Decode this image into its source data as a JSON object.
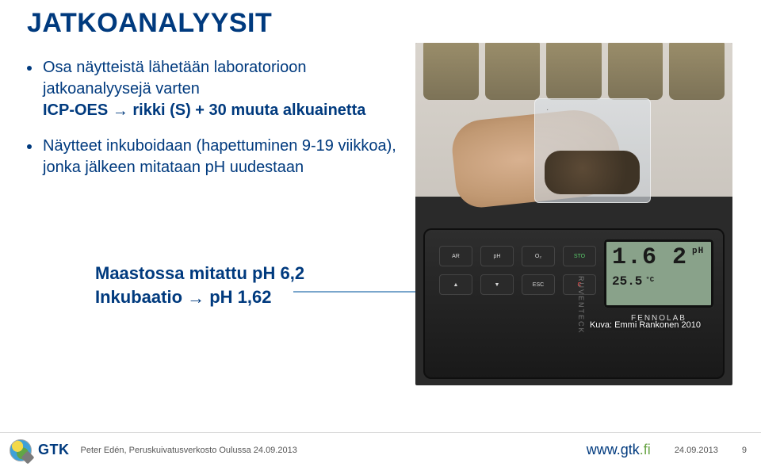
{
  "title": "JATKOANALYYSIT",
  "bullets": [
    {
      "pre": "Osa näytteistä lähetään laboratorioon jatkoanalyysejä varten",
      "post_strong_before": "ICP-OES",
      "arrow": "→",
      "post_strong_after": "rikki (S) + 30 muuta alkuainetta"
    },
    {
      "line1": "Näytteet inkuboidaan (hapettuminen 9-19 viikkoa), jonka jälkeen mitataan pH uudestaan"
    }
  ],
  "callout": {
    "line1": "Maastossa mitattu pH 6,2",
    "line2_before": "Inkubaatio ",
    "line2_arrow": "→",
    "line2_after": " pH 1,62"
  },
  "meter": {
    "reading_main": "1.6 2",
    "reading_main_unit": "pH",
    "reading_sub": "25.5",
    "reading_sub_unit": "°C",
    "brand": "FENNOLAB",
    "side": "RUVENTECK",
    "buttons": [
      "AR",
      "pH",
      "O₂",
      "STO",
      "▲",
      "▼",
      "ESC",
      "C"
    ]
  },
  "caption": "Kuva: Emmi Rankonen 2010",
  "footer": {
    "logo_text": "GTK",
    "left_text": "Peter Edén, Peruskuivatusverkosto Oulussa 24.09.2013",
    "url_main": "www.gtk",
    "url_fi": ".fi",
    "date": "24.09.2013",
    "page": "9"
  },
  "colors": {
    "brand_blue": "#003a7e",
    "accent_green": "#6aa548",
    "callout_line": "#7aa6cc"
  }
}
